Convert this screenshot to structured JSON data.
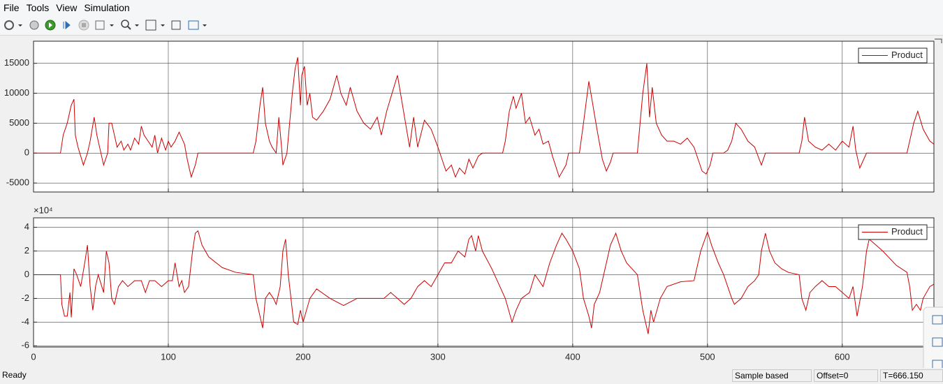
{
  "menu": [
    "File",
    "Tools",
    "View",
    "Simulation"
  ],
  "status": {
    "message": "Ready",
    "sections": [
      "Sample based",
      "Offset=0",
      "T=666.150"
    ]
  },
  "chart_data": [
    {
      "type": "line",
      "legend": "upper right",
      "grid": true,
      "show_xtick_labels": false,
      "xlim": [
        0,
        668
      ],
      "xticks": [
        0,
        100,
        200,
        300,
        400,
        500,
        600
      ],
      "ylim": [
        -6500,
        18700
      ],
      "yticks": [
        -5000,
        0,
        5000,
        10000,
        15000
      ],
      "x": [
        0,
        20,
        22,
        25,
        28,
        30,
        31,
        33,
        35,
        37,
        40,
        42,
        45,
        47,
        50,
        52,
        55,
        56,
        58,
        60,
        62,
        65,
        67,
        70,
        72,
        75,
        78,
        80,
        82,
        85,
        88,
        90,
        92,
        95,
        98,
        100,
        102,
        105,
        108,
        112,
        114,
        117,
        120,
        122,
        163,
        165,
        168,
        170,
        172,
        175,
        177,
        180,
        182,
        184,
        185,
        188,
        190,
        192,
        194,
        196,
        198,
        199,
        201,
        203,
        205,
        207,
        210,
        215,
        220,
        225,
        228,
        232,
        235,
        240,
        245,
        250,
        255,
        258,
        262,
        266,
        270,
        273,
        276,
        279,
        282,
        285,
        290,
        295,
        300,
        303,
        306,
        310,
        313,
        316,
        320,
        323,
        326,
        330,
        333,
        348,
        350,
        353,
        356,
        358,
        362,
        365,
        368,
        372,
        375,
        378,
        382,
        385,
        390,
        395,
        397,
        405,
        408,
        412,
        415,
        418,
        422,
        425,
        428,
        430,
        448,
        452,
        455,
        457,
        459,
        462,
        466,
        470,
        475,
        480,
        485,
        490,
        493,
        496,
        499,
        502,
        504,
        512,
        515,
        518,
        521,
        525,
        530,
        535,
        540,
        543,
        568,
        570,
        572,
        575,
        580,
        585,
        590,
        595,
        600,
        605,
        608,
        610,
        613,
        616,
        618,
        648,
        650,
        653,
        656,
        660,
        665,
        668
      ],
      "series": [
        {
          "name": "Product",
          "color": "#cc0000",
          "values": [
            0,
            0,
            3000,
            5000,
            8000,
            9000,
            3000,
            1000,
            -500,
            -2000,
            0,
            2000,
            6000,
            3000,
            0,
            -2000,
            0,
            5000,
            5000,
            3000,
            1000,
            2000,
            500,
            1500,
            500,
            2500,
            1500,
            4500,
            3000,
            2000,
            1000,
            3000,
            0,
            2500,
            500,
            2000,
            1000,
            2000,
            3500,
            1500,
            -1000,
            -4000,
            -2000,
            0,
            0,
            2000,
            8000,
            11000,
            5000,
            2000,
            1000,
            0,
            6000,
            1000,
            -2000,
            0,
            5000,
            10000,
            14000,
            16000,
            8000,
            13000,
            14500,
            8000,
            10000,
            6000,
            5500,
            7000,
            9000,
            13000,
            10000,
            8000,
            11000,
            7000,
            5000,
            4000,
            6000,
            3000,
            7000,
            10000,
            13000,
            9000,
            5000,
            1000,
            6000,
            1000,
            5500,
            4000,
            1000,
            -1000,
            -3000,
            -2000,
            -4000,
            -2500,
            -3500,
            -1000,
            -2500,
            -500,
            0,
            0,
            2000,
            7000,
            9500,
            7500,
            10000,
            5000,
            6000,
            3000,
            4000,
            1500,
            2000,
            -500,
            -4000,
            -2000,
            0,
            0,
            5000,
            12000,
            8000,
            4000,
            -1000,
            -3000,
            -1500,
            0,
            0,
            10000,
            15000,
            6000,
            11000,
            5000,
            3000,
            2000,
            2000,
            1500,
            2500,
            1000,
            -1000,
            -3000,
            -3500,
            -2000,
            0,
            0,
            500,
            2000,
            5000,
            4000,
            2000,
            1000,
            -2000,
            0,
            0,
            2000,
            6000,
            2000,
            1000,
            500,
            1500,
            500,
            2000,
            1000,
            4500,
            500,
            -2500,
            -1000,
            0,
            0,
            2000,
            5000,
            7000,
            4000,
            2000,
            1500
          ]
        }
      ]
    },
    {
      "type": "line",
      "legend": "upper right",
      "grid": true,
      "show_xtick_labels": true,
      "y_exponent_label": "×10⁴",
      "xlim": [
        0,
        668
      ],
      "xticks": [
        0,
        100,
        200,
        300,
        400,
        500,
        600
      ],
      "ylim": [
        -6.1,
        4.8
      ],
      "yticks": [
        -6,
        -4,
        -2,
        0,
        2,
        4
      ],
      "x": [
        0,
        20,
        21,
        23,
        25,
        27,
        28,
        30,
        32,
        35,
        38,
        40,
        42,
        44,
        46,
        48,
        52,
        54,
        56,
        58,
        60,
        63,
        66,
        70,
        75,
        80,
        83,
        86,
        90,
        95,
        100,
        103,
        105,
        108,
        110,
        112,
        115,
        118,
        120,
        122,
        125,
        130,
        140,
        150,
        163,
        165,
        168,
        170,
        172,
        175,
        178,
        180,
        183,
        185,
        187,
        189,
        191,
        193,
        196,
        198,
        200,
        205,
        210,
        220,
        230,
        240,
        250,
        260,
        265,
        270,
        275,
        280,
        285,
        290,
        295,
        300,
        305,
        310,
        315,
        320,
        323,
        325,
        328,
        330,
        333,
        340,
        350,
        355,
        358,
        362,
        368,
        372,
        378,
        383,
        388,
        392,
        395,
        400,
        405,
        408,
        412,
        414,
        416,
        420,
        423,
        428,
        432,
        436,
        440,
        448,
        452,
        456,
        458,
        460,
        465,
        470,
        480,
        490,
        495,
        500,
        503,
        508,
        512,
        515,
        518,
        520,
        525,
        530,
        535,
        538,
        540,
        543,
        546,
        550,
        555,
        560,
        568,
        570,
        573,
        576,
        580,
        585,
        590,
        595,
        600,
        605,
        608,
        611,
        615,
        618,
        620,
        625,
        630,
        640,
        648,
        650,
        652,
        655,
        658,
        660,
        665,
        668
      ],
      "series": [
        {
          "name": "Product",
          "color": "#cc0000",
          "values": [
            0,
            0,
            -2.5,
            -3.5,
            -3.5,
            -1.5,
            -3.6,
            0.5,
            0,
            -1,
            1,
            2.5,
            -1,
            -3,
            -1,
            0,
            -1.5,
            2,
            1,
            -2,
            -2.5,
            -1,
            -0.5,
            -1,
            -0.5,
            -0.5,
            -1.5,
            -0.5,
            -0.5,
            -1,
            -0.5,
            -0.5,
            1,
            -1,
            -0.5,
            -1.5,
            -1,
            2,
            3.5,
            3.7,
            2.5,
            1.5,
            0.6,
            0.2,
            0,
            -2,
            -3.5,
            -4.5,
            -2,
            -1.5,
            -2,
            -2.5,
            -1,
            2,
            3,
            0,
            -2,
            -4,
            -4.2,
            -3,
            -4,
            -2,
            -1.2,
            -2,
            -2.6,
            -2,
            -2,
            -2,
            -1.5,
            -2,
            -2.5,
            -2,
            -1,
            -0.5,
            -1,
            0,
            1,
            1,
            2,
            1.5,
            3,
            3.3,
            2,
            3.3,
            2,
            0.5,
            -2,
            -4,
            -3,
            -2,
            -1.5,
            0,
            -1,
            1,
            2.5,
            3.5,
            3,
            2,
            0.5,
            -2,
            -3.5,
            -4.5,
            -2.5,
            -1.5,
            0,
            2.5,
            3.5,
            2,
            1,
            0,
            -3,
            -5,
            -3,
            -4,
            -2,
            -1,
            -0.6,
            -0.5,
            2,
            3.6,
            2.5,
            1,
            0,
            -1,
            -2,
            -2.5,
            -2,
            -1,
            -0.5,
            0,
            2,
            3.5,
            2,
            1,
            0.5,
            0.2,
            0,
            -2,
            -3,
            -1.5,
            -1,
            -0.5,
            -1,
            -1,
            -1.5,
            -2,
            -1,
            -3.5,
            -1,
            2,
            3,
            2.5,
            2,
            0.8,
            0.2,
            -1,
            -3,
            -2.5,
            -3,
            -2,
            -1,
            -0.8
          ]
        }
      ]
    }
  ]
}
